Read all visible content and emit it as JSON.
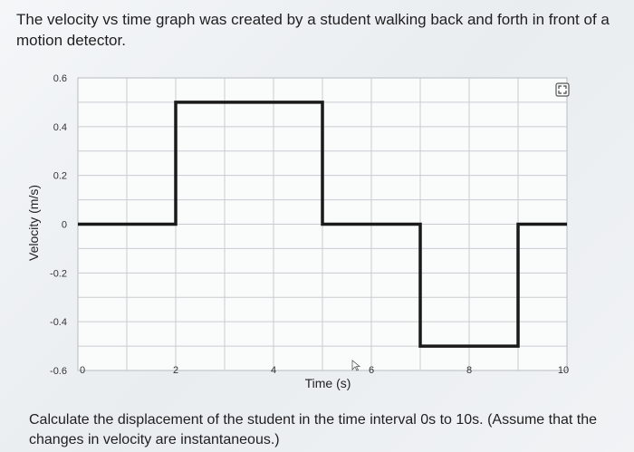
{
  "question": {
    "text": "The velocity vs time graph was created by a student walking back and forth in front of a motion detector."
  },
  "prompt": {
    "text": "Calculate the displacement of the student in the time interval 0s to 10s. (Assume that the changes in velocity are instantaneous.)"
  },
  "chart_data": {
    "type": "line",
    "xlabel": "Time (s)",
    "ylabel": "Velocity (m/s)",
    "xlim": [
      0,
      10
    ],
    "ylim": [
      -0.6,
      0.6
    ],
    "x_ticks": [
      0,
      2,
      4,
      6,
      8,
      10
    ],
    "y_ticks": [
      0.6,
      0.4,
      0.2,
      0,
      -0.2,
      -0.4,
      -0.6
    ],
    "x_tick_labels": [
      "0",
      "2",
      "4",
      "6",
      "8",
      "10"
    ],
    "y_tick_labels": [
      "0.6",
      "0.4",
      "0.2",
      "0",
      "-0.2",
      "-0.4",
      "-0.6"
    ],
    "grid": true,
    "series": [
      {
        "x": [
          0,
          2,
          2,
          5,
          5,
          7,
          7,
          9,
          9,
          10
        ],
        "y": [
          0,
          0,
          0.5,
          0.5,
          0,
          0,
          -0.5,
          -0.5,
          0,
          0
        ]
      }
    ],
    "line_color": "#1a1a1a",
    "grid_color": "#c8ccd0"
  },
  "icons": {
    "expand": "expand-icon"
  }
}
